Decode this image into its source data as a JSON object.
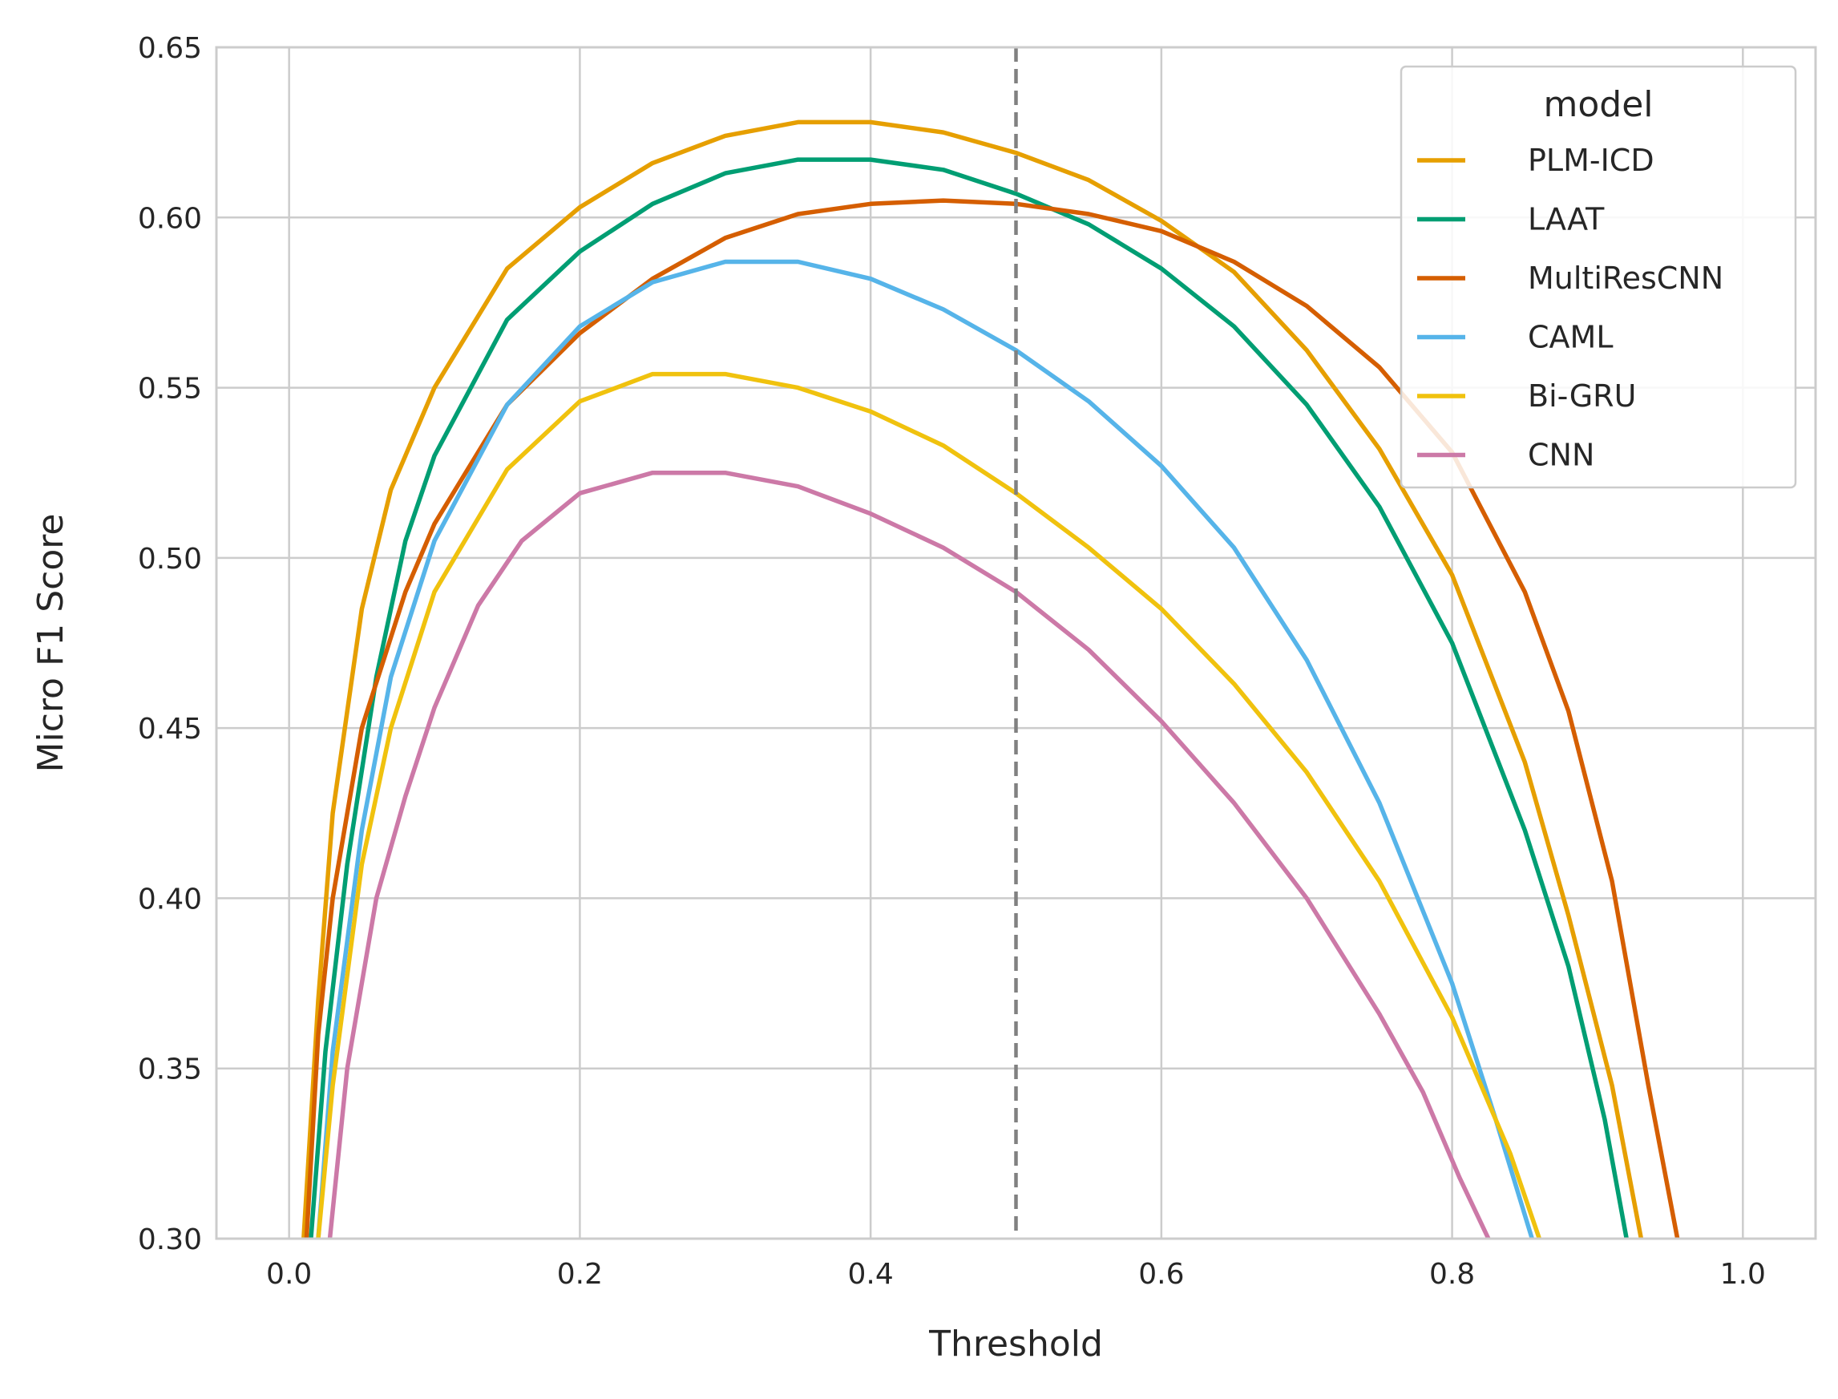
{
  "chart_data": {
    "type": "line",
    "title": "",
    "xlabel": "Threshold",
    "ylabel": "Micro F1 Score",
    "xlim": [
      -0.05,
      1.05
    ],
    "ylim": [
      0.3,
      0.65
    ],
    "xticks": [
      0.0,
      0.2,
      0.4,
      0.6,
      0.8,
      1.0
    ],
    "xtick_labels": [
      "0.0",
      "0.2",
      "0.4",
      "0.6",
      "0.8",
      "1.0"
    ],
    "yticks": [
      0.3,
      0.35,
      0.4,
      0.45,
      0.5,
      0.55,
      0.6,
      0.65
    ],
    "ytick_labels": [
      "0.30",
      "0.35",
      "0.40",
      "0.45",
      "0.50",
      "0.55",
      "0.60",
      "0.65"
    ],
    "grid": true,
    "reference_line": {
      "x": 0.5,
      "style": "dashed",
      "color": "#808080"
    },
    "legend": {
      "title": "model",
      "placement": "top-right"
    },
    "series": [
      {
        "name": "PLM-ICD",
        "color": "#E69F00",
        "x": [
          0.01,
          0.02,
          0.03,
          0.05,
          0.07,
          0.1,
          0.15,
          0.2,
          0.25,
          0.3,
          0.35,
          0.4,
          0.45,
          0.5,
          0.55,
          0.6,
          0.65,
          0.7,
          0.75,
          0.8,
          0.85,
          0.88,
          0.91,
          0.93
        ],
        "y": [
          0.3,
          0.37,
          0.425,
          0.485,
          0.52,
          0.55,
          0.585,
          0.603,
          0.616,
          0.624,
          0.628,
          0.628,
          0.625,
          0.619,
          0.611,
          0.599,
          0.584,
          0.561,
          0.532,
          0.495,
          0.44,
          0.395,
          0.345,
          0.3
        ]
      },
      {
        "name": "LAAT",
        "color": "#009E73",
        "x": [
          0.015,
          0.025,
          0.04,
          0.06,
          0.08,
          0.1,
          0.15,
          0.2,
          0.25,
          0.3,
          0.35,
          0.4,
          0.45,
          0.5,
          0.55,
          0.6,
          0.65,
          0.7,
          0.75,
          0.8,
          0.85,
          0.88,
          0.905,
          0.92
        ],
        "y": [
          0.3,
          0.355,
          0.41,
          0.465,
          0.505,
          0.53,
          0.57,
          0.59,
          0.604,
          0.613,
          0.617,
          0.617,
          0.614,
          0.607,
          0.598,
          0.585,
          0.568,
          0.545,
          0.515,
          0.475,
          0.42,
          0.38,
          0.335,
          0.3
        ]
      },
      {
        "name": "MultiResCNN",
        "color": "#D55E00",
        "x": [
          0.012,
          0.02,
          0.03,
          0.05,
          0.08,
          0.1,
          0.15,
          0.2,
          0.25,
          0.3,
          0.35,
          0.4,
          0.45,
          0.5,
          0.55,
          0.6,
          0.65,
          0.7,
          0.75,
          0.8,
          0.85,
          0.88,
          0.91,
          0.935,
          0.955
        ],
        "y": [
          0.3,
          0.36,
          0.4,
          0.45,
          0.49,
          0.51,
          0.545,
          0.566,
          0.582,
          0.594,
          0.601,
          0.604,
          0.605,
          0.604,
          0.601,
          0.596,
          0.587,
          0.574,
          0.556,
          0.531,
          0.49,
          0.455,
          0.405,
          0.345,
          0.3
        ]
      },
      {
        "name": "CAML",
        "color": "#56B4E9",
        "x": [
          0.02,
          0.03,
          0.05,
          0.07,
          0.1,
          0.15,
          0.2,
          0.25,
          0.3,
          0.35,
          0.4,
          0.45,
          0.5,
          0.55,
          0.6,
          0.65,
          0.7,
          0.75,
          0.8,
          0.83,
          0.855
        ],
        "y": [
          0.3,
          0.355,
          0.42,
          0.465,
          0.505,
          0.545,
          0.568,
          0.581,
          0.587,
          0.587,
          0.582,
          0.573,
          0.561,
          0.546,
          0.527,
          0.503,
          0.47,
          0.428,
          0.375,
          0.335,
          0.3
        ]
      },
      {
        "name": "Bi-GRU",
        "color": "#F0C20E",
        "x": [
          0.02,
          0.03,
          0.05,
          0.07,
          0.1,
          0.15,
          0.2,
          0.25,
          0.3,
          0.35,
          0.4,
          0.45,
          0.5,
          0.55,
          0.6,
          0.65,
          0.7,
          0.75,
          0.8,
          0.84,
          0.86
        ],
        "y": [
          0.3,
          0.345,
          0.41,
          0.45,
          0.49,
          0.526,
          0.546,
          0.554,
          0.554,
          0.55,
          0.543,
          0.533,
          0.519,
          0.503,
          0.485,
          0.463,
          0.437,
          0.405,
          0.365,
          0.325,
          0.3
        ]
      },
      {
        "name": "CNN",
        "color": "#CC79A7",
        "x": [
          0.028,
          0.04,
          0.06,
          0.08,
          0.1,
          0.13,
          0.16,
          0.2,
          0.25,
          0.3,
          0.35,
          0.4,
          0.45,
          0.5,
          0.55,
          0.6,
          0.65,
          0.7,
          0.75,
          0.78,
          0.805,
          0.825
        ],
        "y": [
          0.3,
          0.35,
          0.4,
          0.43,
          0.456,
          0.486,
          0.505,
          0.519,
          0.525,
          0.525,
          0.521,
          0.513,
          0.503,
          0.49,
          0.473,
          0.452,
          0.428,
          0.4,
          0.366,
          0.343,
          0.318,
          0.3
        ]
      }
    ]
  }
}
